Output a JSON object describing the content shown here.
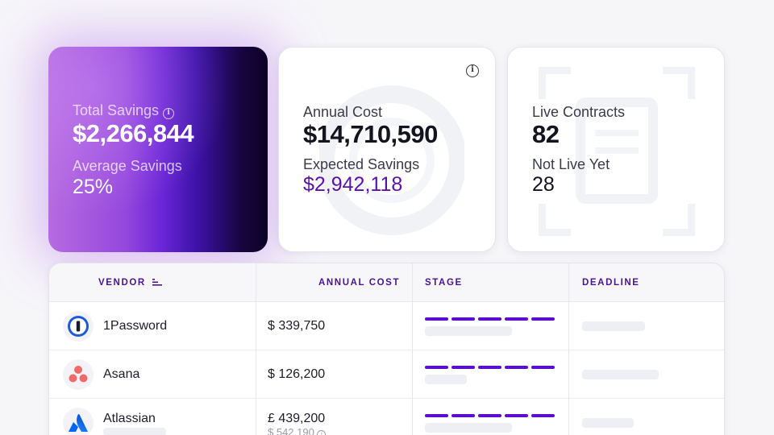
{
  "cards": {
    "savings": {
      "total_label": "Total Savings",
      "total_value": "$2,266,844",
      "avg_label": "Average Savings",
      "avg_value": "25%"
    },
    "annual": {
      "cost_label": "Annual Cost",
      "cost_value": "$14,710,590",
      "expected_label": "Expected Savings",
      "expected_value": "$2,942,118"
    },
    "contracts": {
      "live_label": "Live Contracts",
      "live_value": "82",
      "notlive_label": "Not Live Yet",
      "notlive_value": "28"
    }
  },
  "table": {
    "headers": {
      "vendor": "VENDOR",
      "annual_cost": "ANNUAL COST",
      "stage": "STAGE",
      "deadline": "DEADLINE"
    },
    "rows": [
      {
        "vendor": "1Password",
        "cost": "$ 339,750",
        "cost_sub": "",
        "logo": "1password-logo",
        "stage_complete": 1.0
      },
      {
        "vendor": "Asana",
        "cost": "$ 126,200",
        "cost_sub": "",
        "logo": "asana-logo",
        "stage_complete": 1.0
      },
      {
        "vendor": "Atlassian",
        "cost": "£ 439,200",
        "cost_sub": "$ 542,190",
        "logo": "atlassian-logo",
        "stage_complete": 1.0
      }
    ]
  },
  "colors": {
    "accent": "#5a0fd0",
    "header_text": "#4a1590",
    "expected_savings": "#5b12a8"
  }
}
